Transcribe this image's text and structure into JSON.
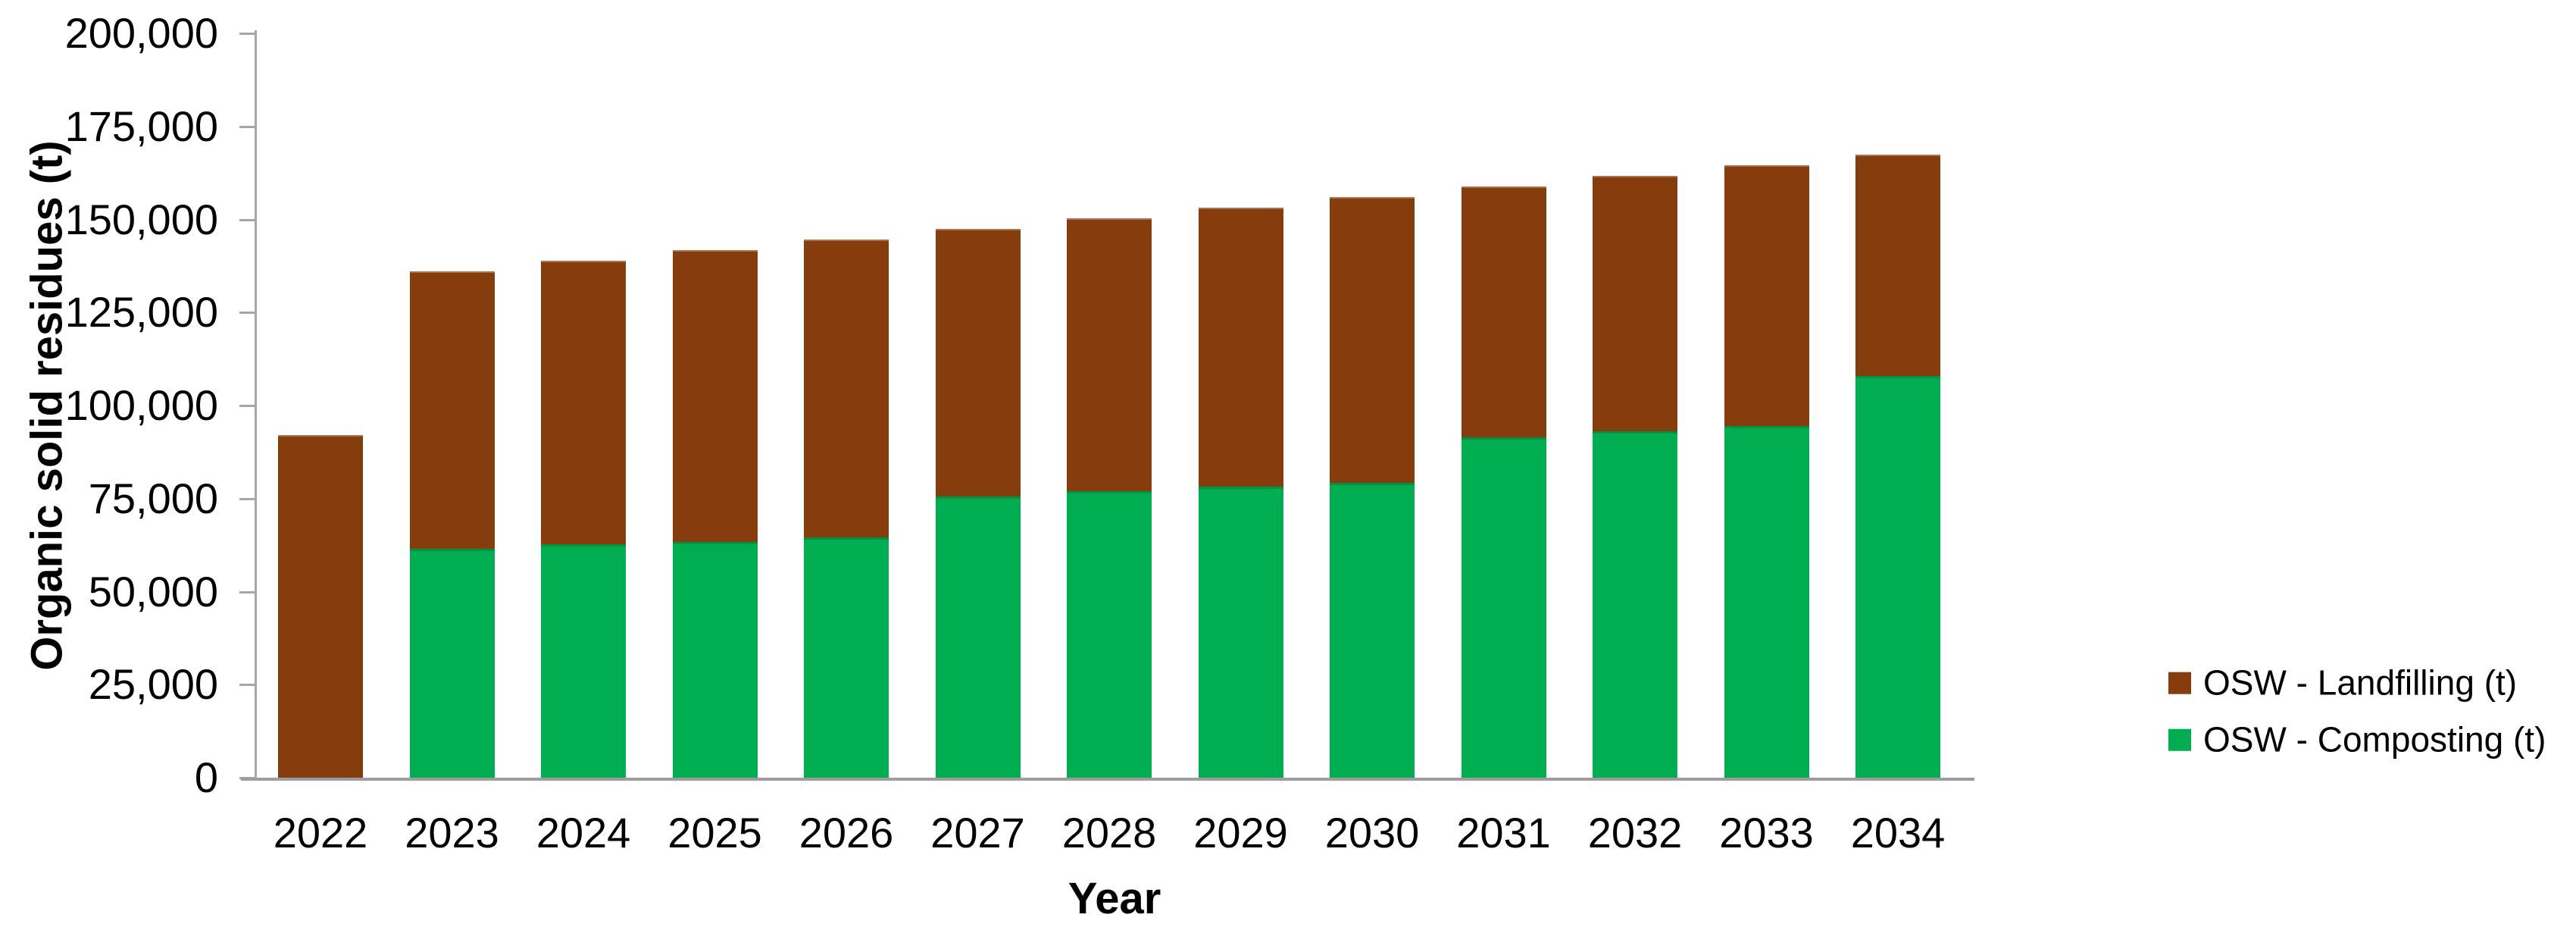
{
  "chart": {
    "y_axis_title": "Organic solid residues (t)",
    "x_axis_title": "Year",
    "background_color": "#ffffff",
    "axis_line_color": "#a6a6a6",
    "text_color": "#000000"
  },
  "chart_data": {
    "type": "bar",
    "stacked": true,
    "title": "",
    "xlabel": "Year",
    "ylabel": "Organic solid residues (t)",
    "categories": [
      "2022",
      "2023",
      "2024",
      "2025",
      "2026",
      "2027",
      "2028",
      "2029",
      "2030",
      "2031",
      "2032",
      "2033",
      "2034"
    ],
    "series": [
      {
        "name": "OSW - Landfilling (t)",
        "color": "#853d0e",
        "stack_position": "top",
        "values": [
          92000,
          74500,
          76100,
          78300,
          80100,
          72000,
          73300,
          75000,
          76700,
          67400,
          68800,
          70000,
          59500
        ]
      },
      {
        "name": "OSW - Composting (t)",
        "color": "#00ad51",
        "stack_position": "bottom",
        "values": [
          0,
          61500,
          62800,
          63400,
          64500,
          75500,
          77000,
          78200,
          79300,
          91500,
          93000,
          94600,
          108000
        ]
      }
    ],
    "stack_totals": [
      92000,
      136000,
      138900,
      141700,
      144600,
      147500,
      150300,
      153200,
      156000,
      158900,
      161800,
      164600,
      167500
    ],
    "ylim": [
      0,
      200000
    ],
    "y_tick_step": 25000,
    "y_tick_labels": [
      "0",
      "25,000",
      "50,000",
      "75,000",
      "100,000",
      "125,000",
      "150,000",
      "175,000",
      "200,000"
    ],
    "grid": false,
    "legend_position": "right"
  }
}
